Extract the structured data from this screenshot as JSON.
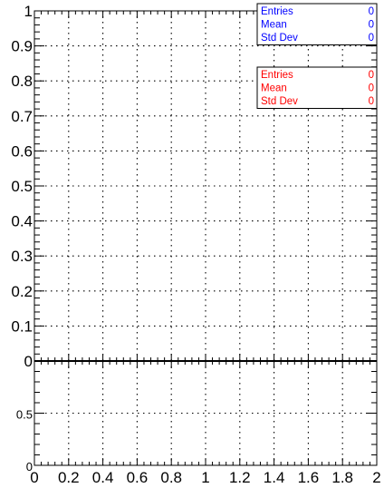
{
  "chart_data": [
    {
      "type": "line",
      "title": "",
      "xlabel": "",
      "ylabel": "",
      "xlim": [
        0,
        2
      ],
      "ylim": [
        0,
        1
      ],
      "grid": true,
      "x_ticks": [
        "0",
        "0.2",
        "0.4",
        "0.6",
        "0.8",
        "1",
        "1.2",
        "1.4",
        "1.6",
        "1.8",
        "2"
      ],
      "y_ticks": [
        "0",
        "0.1",
        "0.2",
        "0.3",
        "0.4",
        "0.5",
        "0.6",
        "0.7",
        "0.8",
        "0.9",
        "1"
      ],
      "series": [
        {
          "color": "#0000ff",
          "x": [],
          "y": []
        },
        {
          "color": "#ff0000",
          "x": [],
          "y": []
        }
      ],
      "stats_boxes": [
        {
          "color": "#0000ff",
          "rows": [
            [
              "Entries",
              "0"
            ],
            [
              "Mean",
              "0"
            ],
            [
              "Std Dev",
              "0"
            ]
          ]
        },
        {
          "color": "#ff0000",
          "rows": [
            [
              "Entries",
              "0"
            ],
            [
              "Mean",
              "0"
            ],
            [
              "Std Dev",
              "0"
            ]
          ]
        }
      ]
    },
    {
      "type": "line",
      "title": "",
      "xlabel": "",
      "ylabel": "",
      "xlim": [
        0,
        2
      ],
      "ylim": [
        0,
        1
      ],
      "grid": true,
      "x_ticks": [
        "0",
        "0.2",
        "0.4",
        "0.6",
        "0.8",
        "1",
        "1.2",
        "1.4",
        "1.6",
        "1.8",
        "2"
      ],
      "y_ticks": [
        "0",
        "0.5"
      ],
      "series": []
    }
  ]
}
